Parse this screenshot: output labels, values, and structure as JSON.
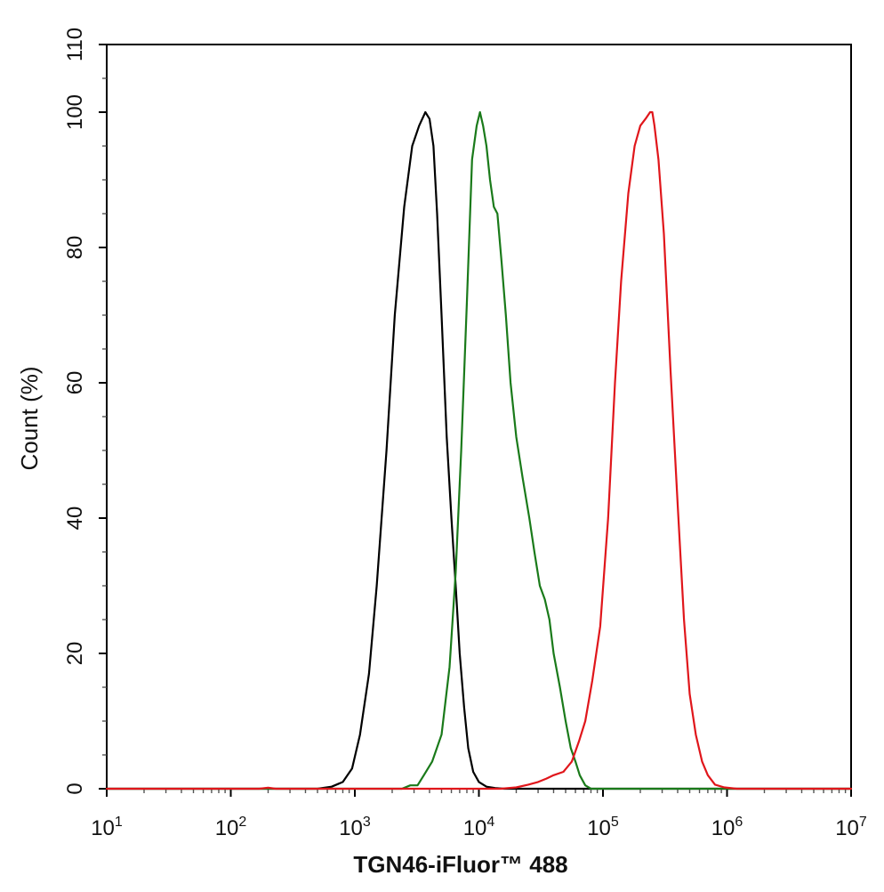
{
  "chart_data": {
    "type": "line",
    "title": "",
    "xlabel": "TGN46-iFluor™ 488",
    "ylabel": "Count  (%)",
    "x_scale": "log",
    "xlim": [
      10,
      10000000
    ],
    "ylim": [
      0,
      110
    ],
    "x_ticks": [
      {
        "base": "10",
        "exp": "1"
      },
      {
        "base": "10",
        "exp": "2"
      },
      {
        "base": "10",
        "exp": "3"
      },
      {
        "base": "10",
        "exp": "4"
      },
      {
        "base": "10",
        "exp": "5"
      },
      {
        "base": "10",
        "exp": "6"
      },
      {
        "base": "10",
        "exp": "7"
      }
    ],
    "y_ticks": [
      "0",
      "20",
      "40",
      "60",
      "80",
      "100",
      "110"
    ],
    "grid": false,
    "legend": "none",
    "series": [
      {
        "color": "#000000",
        "x": [
          10,
          150,
          500,
          650,
          800,
          950,
          1100,
          1300,
          1500,
          1800,
          2100,
          2500,
          2900,
          3300,
          3700,
          4000,
          4300,
          4600,
          5000,
          5500,
          6000,
          6500,
          7000,
          7600,
          8200,
          9000,
          10000,
          11500,
          13500,
          16000,
          20000,
          10000000
        ],
        "y": [
          0,
          0,
          0,
          0.3,
          1,
          3,
          8,
          17,
          30,
          50,
          70,
          86,
          95,
          98,
          100,
          99,
          95,
          85,
          70,
          52,
          40,
          30,
          20,
          12,
          6,
          2.5,
          1,
          0.3,
          0.1,
          0,
          0,
          0
        ]
      },
      {
        "color": "#1a7a1a",
        "x": [
          10,
          2400,
          2800,
          3200,
          3600,
          4200,
          5000,
          5800,
          6500,
          7200,
          8000,
          8800,
          9600,
          10200,
          10800,
          11500,
          12300,
          13200,
          14100,
          15200,
          16500,
          18000,
          20000,
          22500,
          25500,
          28000,
          31000,
          34000,
          37000,
          40000,
          45000,
          50000,
          55000,
          60000,
          65000,
          72000,
          80000,
          10000000
        ],
        "y": [
          0,
          0,
          0.5,
          0.5,
          2,
          4,
          8,
          18,
          32,
          50,
          72,
          93,
          98,
          100,
          98,
          95,
          90,
          86,
          85,
          78,
          70,
          60,
          52,
          46,
          40,
          35,
          30,
          28,
          25,
          20,
          15,
          10,
          6,
          4,
          2,
          0.5,
          0,
          0
        ]
      },
      {
        "color": "#e0161b",
        "x": [
          10,
          170,
          200,
          230,
          15000,
          20000,
          25000,
          30000,
          35000,
          40000,
          48000,
          56000,
          64000,
          72000,
          82000,
          95000,
          110000,
          125000,
          140000,
          160000,
          180000,
          200000,
          220000,
          240000,
          250000,
          260000,
          280000,
          310000,
          350000,
          400000,
          450000,
          500000,
          560000,
          630000,
          700000,
          800000,
          950000,
          1200000,
          10000000
        ],
        "y": [
          0,
          0,
          0.15,
          0,
          0,
          0.2,
          0.6,
          1,
          1.5,
          2,
          2.5,
          4,
          7,
          10,
          16,
          24,
          40,
          60,
          75,
          88,
          95,
          98,
          99,
          100,
          100,
          98,
          93,
          82,
          62,
          42,
          25,
          14,
          8,
          4,
          2,
          0.6,
          0.2,
          0,
          0
        ]
      }
    ]
  }
}
